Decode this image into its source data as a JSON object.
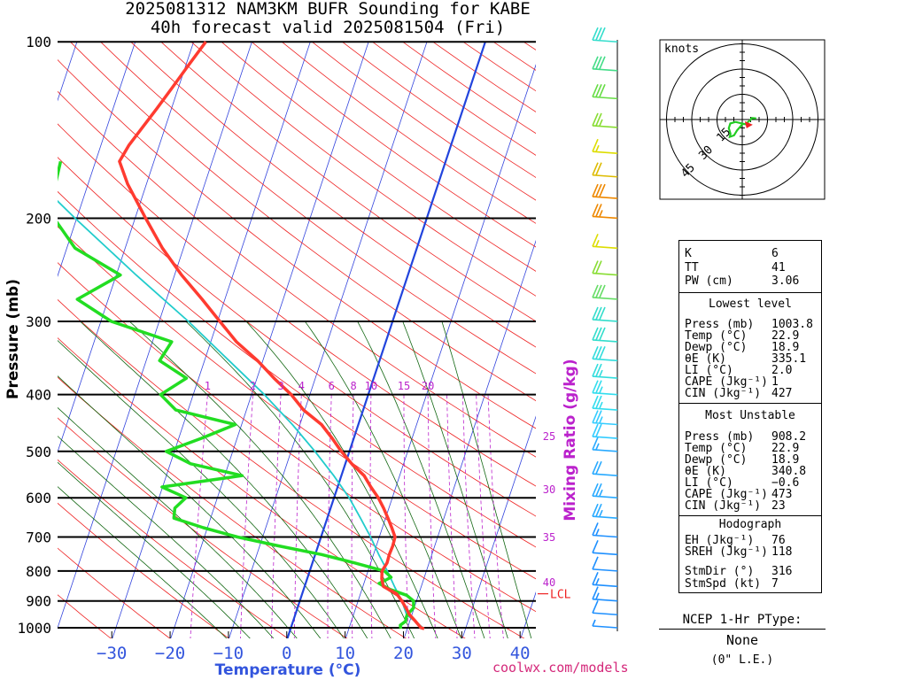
{
  "header": {
    "title_line1": "2025081312 NAM3KM BUFR Sounding for KABE",
    "title_line2": "40h forecast valid 2025081504 (Fri)"
  },
  "chart_data": {
    "type": "skew-t",
    "xlabel": "Temperature (°C)",
    "ylabel": "Pressure (mb)",
    "mixing_ratio_label": "Mixing Ratio (g/kg)",
    "pressure_ticks": [
      100,
      200,
      300,
      400,
      500,
      600,
      700,
      800,
      900,
      1000
    ],
    "pressure_range": [
      100,
      1050
    ],
    "temperature_ticks": [
      -30,
      -20,
      -10,
      0,
      10,
      20,
      30,
      40
    ],
    "temperature_range_at_1000": [
      -40,
      42
    ],
    "mixing_ratio_lines": [
      1,
      2,
      3,
      4,
      6,
      8,
      10,
      15,
      20,
      25,
      30,
      35,
      40
    ],
    "lcl_label": "LCL",
    "lcl_pressure": 875,
    "temperature_profile": [
      [
        1003.8,
        22.9
      ],
      [
        1000,
        22.3
      ],
      [
        975,
        21.0
      ],
      [
        950,
        19.6
      ],
      [
        925,
        18.6
      ],
      [
        900,
        17.5
      ],
      [
        875,
        16.2
      ],
      [
        850,
        13.5
      ],
      [
        825,
        12.8
      ],
      [
        800,
        12.4
      ],
      [
        775,
        12.8
      ],
      [
        750,
        12.7
      ],
      [
        725,
        12.8
      ],
      [
        700,
        12.7
      ],
      [
        675,
        11.6
      ],
      [
        650,
        10.4
      ],
      [
        625,
        9.1
      ],
      [
        600,
        7.6
      ],
      [
        575,
        5.7
      ],
      [
        550,
        3.9
      ],
      [
        525,
        1.1
      ],
      [
        500,
        -1.4
      ],
      [
        475,
        -3.7
      ],
      [
        450,
        -6.3
      ],
      [
        425,
        -10.2
      ],
      [
        400,
        -13.2
      ],
      [
        375,
        -17.1
      ],
      [
        350,
        -20.9
      ],
      [
        325,
        -25.6
      ],
      [
        300,
        -29.6
      ],
      [
        275,
        -33.9
      ],
      [
        250,
        -38.8
      ],
      [
        225,
        -43.6
      ],
      [
        200,
        -48.2
      ],
      [
        175,
        -53.2
      ],
      [
        160,
        -55.9
      ],
      [
        150,
        -55.2
      ],
      [
        140,
        -53.9
      ],
      [
        130,
        -52.5
      ],
      [
        120,
        -51.1
      ],
      [
        110,
        -49.6
      ],
      [
        100,
        -47.9
      ]
    ],
    "dewpoint_profile": [
      [
        1003.8,
        18.9
      ],
      [
        990,
        18.6
      ],
      [
        975,
        19.3
      ],
      [
        960,
        19.2
      ],
      [
        950,
        19.2
      ],
      [
        925,
        19.9
      ],
      [
        900,
        19.5
      ],
      [
        880,
        18.0
      ],
      [
        860,
        14.8
      ],
      [
        840,
        12.6
      ],
      [
        820,
        14.3
      ],
      [
        800,
        12.8
      ],
      [
        775,
        7.2
      ],
      [
        750,
        1.1
      ],
      [
        725,
        -6.7
      ],
      [
        700,
        -14.3
      ],
      [
        675,
        -20.7
      ],
      [
        650,
        -26.3
      ],
      [
        625,
        -26.7
      ],
      [
        600,
        -25.4
      ],
      [
        575,
        -30.1
      ],
      [
        550,
        -17.0
      ],
      [
        525,
        -26.5
      ],
      [
        500,
        -31.4
      ],
      [
        475,
        -26.1
      ],
      [
        450,
        -21.1
      ],
      [
        425,
        -32.1
      ],
      [
        400,
        -35.6
      ],
      [
        375,
        -32.1
      ],
      [
        350,
        -37.7
      ],
      [
        325,
        -36.7
      ],
      [
        300,
        -48.2
      ],
      [
        275,
        -55.3
      ],
      [
        250,
        -49.3
      ],
      [
        225,
        -58.6
      ],
      [
        200,
        -63.9
      ],
      [
        175,
        -65.6
      ],
      [
        160,
        -66.0
      ]
    ],
    "parcel_profile": [
      [
        1003.8,
        22.9
      ],
      [
        950,
        19.1
      ],
      [
        900,
        17.5
      ],
      [
        850,
        15.4
      ],
      [
        800,
        13.3
      ],
      [
        750,
        10.9
      ],
      [
        700,
        8.5
      ],
      [
        650,
        5.7
      ],
      [
        600,
        2.6
      ],
      [
        550,
        -1.3
      ],
      [
        500,
        -5.9
      ],
      [
        450,
        -11.3
      ],
      [
        400,
        -17.8
      ],
      [
        350,
        -25.8
      ],
      [
        300,
        -35.0
      ],
      [
        250,
        -46.6
      ],
      [
        200,
        -60.3
      ],
      [
        150,
        -77.3
      ],
      [
        100,
        -98.0
      ]
    ],
    "wind_barbs": [
      {
        "p": 1000,
        "speed_kt": 5,
        "color": "#1e90ff"
      },
      {
        "p": 950,
        "speed_kt": 10,
        "color": "#1e90ff"
      },
      {
        "p": 900,
        "speed_kt": 15,
        "color": "#1e90ff"
      },
      {
        "p": 850,
        "speed_kt": 15,
        "color": "#1e90ff"
      },
      {
        "p": 800,
        "speed_kt": 10,
        "color": "#1e90ff"
      },
      {
        "p": 750,
        "speed_kt": 10,
        "color": "#1e90ff"
      },
      {
        "p": 700,
        "speed_kt": 15,
        "color": "#1e90ff"
      },
      {
        "p": 650,
        "speed_kt": 25,
        "color": "#29aaff"
      },
      {
        "p": 600,
        "speed_kt": 25,
        "color": "#29aaff"
      },
      {
        "p": 550,
        "speed_kt": 20,
        "color": "#29aaff"
      },
      {
        "p": 500,
        "speed_kt": 15,
        "color": "#29aaff"
      },
      {
        "p": 475,
        "speed_kt": 20,
        "color": "#33ccff"
      },
      {
        "p": 450,
        "speed_kt": 25,
        "color": "#33ccff"
      },
      {
        "p": 425,
        "speed_kt": 25,
        "color": "#33ddee"
      },
      {
        "p": 400,
        "speed_kt": 25,
        "color": "#33ddee"
      },
      {
        "p": 375,
        "speed_kt": 25,
        "color": "#33dddd"
      },
      {
        "p": 350,
        "speed_kt": 30,
        "color": "#33dddd"
      },
      {
        "p": 325,
        "speed_kt": 30,
        "color": "#33ddcc"
      },
      {
        "p": 300,
        "speed_kt": 30,
        "color": "#33ddcc"
      },
      {
        "p": 275,
        "speed_kt": 30,
        "color": "#66dd66"
      },
      {
        "p": 250,
        "speed_kt": 20,
        "color": "#88dd33"
      },
      {
        "p": 225,
        "speed_kt": 15,
        "color": "#dddd00"
      },
      {
        "p": 200,
        "speed_kt": 25,
        "color": "#ee8800"
      },
      {
        "p": 185,
        "speed_kt": 30,
        "color": "#ee8800"
      },
      {
        "p": 170,
        "speed_kt": 20,
        "color": "#ddbb00"
      },
      {
        "p": 155,
        "speed_kt": 15,
        "color": "#dddd00"
      },
      {
        "p": 140,
        "speed_kt": 25,
        "color": "#88dd33"
      },
      {
        "p": 125,
        "speed_kt": 30,
        "color": "#66dd44"
      },
      {
        "p": 112,
        "speed_kt": 30,
        "color": "#44dd88"
      },
      {
        "p": 100,
        "speed_kt": 30,
        "color": "#33ddcc"
      }
    ],
    "hodograph": {
      "units_label": "knots",
      "ring_labels": [
        "15",
        "30",
        "45"
      ],
      "ring_values": [
        15,
        30,
        45
      ],
      "points": [
        [
          0.5,
          -2.3
        ],
        [
          -3.1,
          -6.5
        ],
        [
          -4.9,
          -9.4
        ],
        [
          -7.4,
          -10.3
        ],
        [
          -7.0,
          -8.4
        ],
        [
          -8.0,
          -5.1
        ],
        [
          -7.1,
          -2.3
        ],
        [
          -4.0,
          -1.4
        ],
        [
          1.8,
          -2.8
        ],
        [
          4.7,
          -0.4
        ],
        [
          5.7,
          0.9
        ],
        [
          8.3,
          0.7
        ]
      ],
      "storm_motion": [
        3.6,
        -3.1
      ]
    }
  },
  "stats": {
    "k_label": "K",
    "k_value": "6",
    "tt_label": "TT",
    "tt_value": "41",
    "pw_label": "PW (cm)",
    "pw_value": "3.06",
    "lowest": {
      "heading": "Lowest level",
      "press_label": "Press (mb)",
      "press_value": "1003.8",
      "temp_label": "Temp (°C)",
      "temp_value": "22.9",
      "dewp_label": "Dewp (°C)",
      "dewp_value": "18.9",
      "theta_label": "θE (K)",
      "theta_value": "335.1",
      "li_label": "LI (°C)",
      "li_value": "2.0",
      "cape_label": "CAPE (Jkg⁻¹)",
      "cape_value": "1",
      "cin_label": "CIN (Jkg⁻¹)",
      "cin_value": "427"
    },
    "most_unstable": {
      "heading": "Most Unstable",
      "press_label": "Press (mb)",
      "press_value": "908.2",
      "temp_label": "Temp (°C)",
      "temp_value": "22.9",
      "dewp_label": "Dewp (°C)",
      "dewp_value": "18.9",
      "theta_label": "θE (K)",
      "theta_value": "340.8",
      "li_label": "LI (°C)",
      "li_value": "−0.6",
      "cape_label": "CAPE (Jkg⁻¹)",
      "cape_value": "473",
      "cin_label": "CIN (Jkg⁻¹)",
      "cin_value": "23"
    },
    "hodograph": {
      "heading": "Hodograph",
      "eh_label": "EH (Jkg⁻¹)",
      "eh_value": "76",
      "srh_label": "SREH (Jkg⁻¹)",
      "srh_value": "118",
      "stmdir_label": "StmDir (°)",
      "stmdir_value": "316",
      "stmspd_label": "StmSpd (kt)",
      "stmspd_value": "7"
    }
  },
  "ptype": {
    "heading": "NCEP 1-Hr PType:",
    "value": "None",
    "note": "(0\" L.E.)"
  },
  "footer": {
    "credit": "coolwx.com/models"
  },
  "colors": {
    "temperature": "#ff3b30",
    "dewpoint": "#22dd22",
    "parcel": "#22cccc",
    "isotherm": "#3344dd",
    "dry_adiabat": "#ee2222",
    "moist_adiabat": "#116611",
    "mixing_ratio": "#bb22cc",
    "zero_isotherm": "#2244dd"
  }
}
